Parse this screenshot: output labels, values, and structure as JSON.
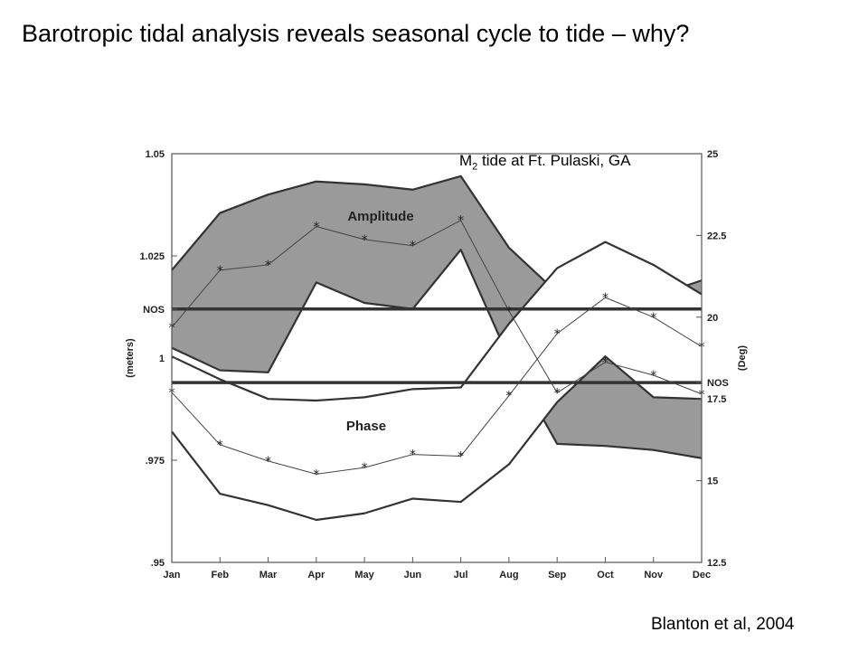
{
  "slide": {
    "title": "Barotropic tidal analysis reveals seasonal cycle to tide – why?",
    "citation": "Blanton et al, 2004"
  },
  "chart_data": {
    "type": "area",
    "title": "M2 tide at Ft. Pulaski, GA",
    "title_parts": {
      "prefix": "M",
      "subscript": "2",
      "suffix": " tide at Ft. Pulaski, GA"
    },
    "categories": [
      "Jan",
      "Feb",
      "Mar",
      "Apr",
      "May",
      "Jun",
      "Jul",
      "Aug",
      "Sep",
      "Oct",
      "Nov",
      "Dec"
    ],
    "left_axis": {
      "label": "(meters)",
      "range": [
        0.95,
        1.05
      ],
      "ticks": [
        {
          "value": 1.05,
          "label": "1.05"
        },
        {
          "value": 1.025,
          "label": "1.025"
        },
        {
          "value": 1.012,
          "label": "NOS"
        },
        {
          "value": 1.0,
          "label": "1"
        },
        {
          "value": 0.975,
          "label": ".975"
        },
        {
          "value": 0.95,
          "label": ".95"
        }
      ]
    },
    "right_axis": {
      "label": "(Deg)",
      "range": [
        12.5,
        25
      ],
      "ticks": [
        {
          "value": 25,
          "label": "25"
        },
        {
          "value": 22.5,
          "label": "22.5"
        },
        {
          "value": 20,
          "label": "20"
        },
        {
          "value": 18,
          "label": "NOS"
        },
        {
          "value": 17.5,
          "label": "17.5"
        },
        {
          "value": 15,
          "label": "15"
        },
        {
          "value": 12.5,
          "label": "12.5"
        }
      ]
    },
    "reference_lines": [
      {
        "label": "NOS",
        "axis": "left",
        "value": 1.012
      },
      {
        "label": "NOS",
        "axis": "right",
        "value": 18.0
      }
    ],
    "series": [
      {
        "name": "Amplitude",
        "axis": "left",
        "fill": "#9a9a9a",
        "mean": [
          1.0075,
          1.0215,
          1.0228,
          1.0322,
          1.029,
          1.0275,
          1.0337,
          1.0115,
          0.9915,
          0.999,
          0.9958,
          0.9912
        ],
        "upper": [
          1.0215,
          1.0355,
          1.04,
          1.0432,
          1.0425,
          1.0412,
          1.0445,
          1.027,
          1.016,
          1.0165,
          1.015,
          1.019
        ],
        "lower": [
          1.0025,
          0.997,
          0.9965,
          1.0185,
          1.0135,
          1.012,
          1.0265,
          1.0,
          0.979,
          0.9785,
          0.9775,
          0.9755
        ]
      },
      {
        "name": "Phase",
        "axis": "right",
        "fill": "#ffffff",
        "mean": [
          17.7,
          16.1,
          15.6,
          15.2,
          15.4,
          15.8,
          15.75,
          17.6,
          19.5,
          20.6,
          20.0,
          19.1
        ],
        "upper": [
          18.8,
          18.1,
          17.5,
          17.45,
          17.55,
          17.8,
          17.85,
          19.8,
          21.5,
          22.3,
          21.6,
          20.7
        ],
        "lower": [
          16.5,
          14.6,
          14.25,
          13.8,
          14.0,
          14.45,
          14.35,
          15.5,
          17.4,
          18.8,
          17.55,
          17.5
        ]
      }
    ],
    "annotations": [
      "Amplitude",
      "Phase"
    ],
    "grid": false
  }
}
